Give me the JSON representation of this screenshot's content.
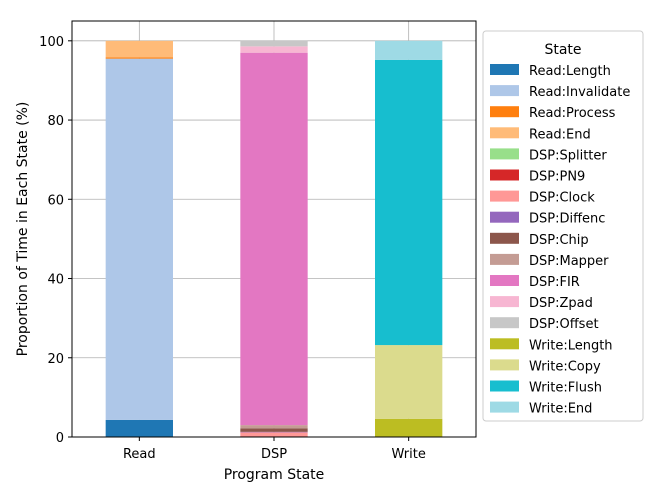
{
  "chart_data": {
    "type": "bar",
    "stacked": true,
    "categories": [
      "Read",
      "DSP",
      "Write"
    ],
    "xlabel": "Program State",
    "ylabel": "Proportion of Time in Each State (%)",
    "ylim": [
      0,
      105
    ],
    "yticks": [
      0,
      20,
      40,
      60,
      80,
      100
    ],
    "grid": true,
    "legend": {
      "title": "State",
      "placement": "right, outside"
    },
    "series": [
      {
        "name": "Read:Length",
        "color": "#1f77b4",
        "values": [
          4.3,
          0,
          0
        ]
      },
      {
        "name": "Read:Invalidate",
        "color": "#aec7e8",
        "values": [
          91.2,
          0,
          0
        ]
      },
      {
        "name": "Read:Process",
        "color": "#ff7f0e",
        "values": [
          0.3,
          0,
          0
        ]
      },
      {
        "name": "Read:End",
        "color": "#ffbb78",
        "values": [
          4.2,
          0,
          0
        ]
      },
      {
        "name": "DSP:Splitter",
        "color": "#98df8a",
        "values": [
          0,
          0.1,
          0
        ]
      },
      {
        "name": "DSP:PN9",
        "color": "#d62728",
        "values": [
          0,
          0.1,
          0
        ]
      },
      {
        "name": "DSP:Clock",
        "color": "#ff9896",
        "values": [
          0,
          1.0,
          0
        ]
      },
      {
        "name": "DSP:Diffenc",
        "color": "#9467bd",
        "values": [
          0,
          0.1,
          0
        ]
      },
      {
        "name": "DSP:Chip",
        "color": "#8c564b",
        "values": [
          0,
          0.9,
          0
        ]
      },
      {
        "name": "DSP:Mapper",
        "color": "#c49c94",
        "values": [
          0,
          0.8,
          0
        ]
      },
      {
        "name": "DSP:FIR",
        "color": "#e377c2",
        "values": [
          0,
          94.0,
          0
        ]
      },
      {
        "name": "DSP:Zpad",
        "color": "#f7b6d2",
        "values": [
          0,
          1.6,
          0
        ]
      },
      {
        "name": "DSP:Offset",
        "color": "#c7c7c7",
        "values": [
          0,
          1.4,
          0
        ]
      },
      {
        "name": "Write:Length",
        "color": "#bcbd22",
        "values": [
          0,
          0,
          4.6
        ]
      },
      {
        "name": "Write:Copy",
        "color": "#dbdb8d",
        "values": [
          0,
          0,
          18.6
        ]
      },
      {
        "name": "Write:Flush",
        "color": "#17becf",
        "values": [
          0,
          0,
          72.0
        ]
      },
      {
        "name": "Write:End",
        "color": "#9edae5",
        "values": [
          0,
          0,
          4.8
        ]
      }
    ]
  }
}
